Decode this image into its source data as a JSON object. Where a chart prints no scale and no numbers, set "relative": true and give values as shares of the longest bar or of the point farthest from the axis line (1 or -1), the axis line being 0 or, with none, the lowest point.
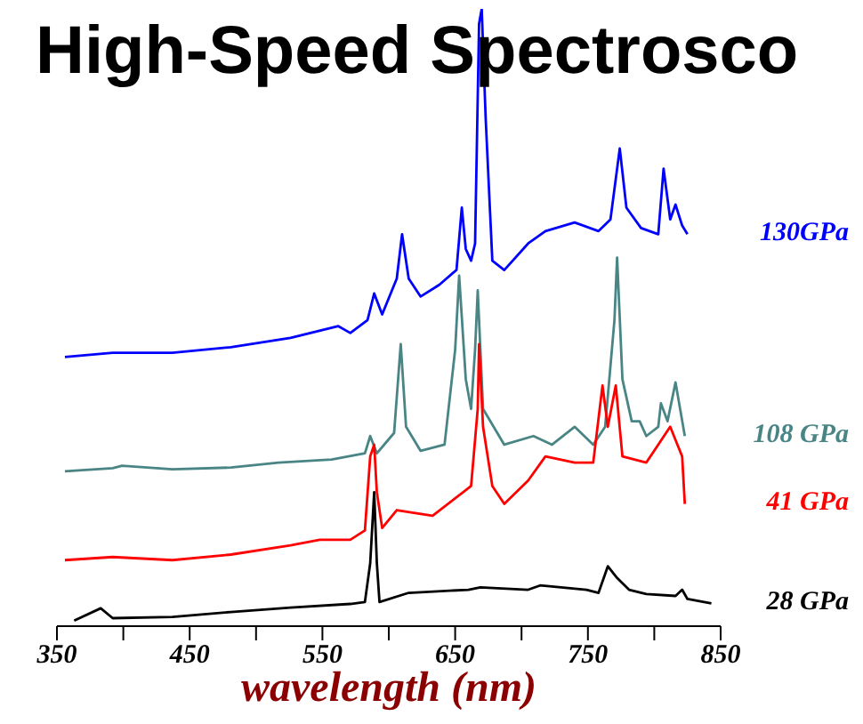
{
  "chart_data": {
    "type": "line",
    "title": "High-Speed Spectrosco",
    "xlabel": "wavelength (nm)",
    "relative": true,
    "xlim": [
      350,
      850
    ],
    "xticks": [
      350,
      {
        "value": 400,
        "label": null
      },
      450,
      {
        "value": 500,
        "label": null
      },
      550,
      {
        "value": 600,
        "label": null
      },
      650,
      {
        "value": 700,
        "label": null
      },
      750,
      {
        "value": 800,
        "label": null
      },
      850
    ],
    "series": [
      {
        "name": "130GPa",
        "color": "#0000ff",
        "x": [
          356,
          392,
          437,
          481,
          526,
          562,
          571,
          584,
          589,
          595,
          606,
          610,
          615,
          624,
          638,
          651,
          655,
          658,
          662,
          665,
          668,
          670,
          673,
          678,
          687,
          705,
          718,
          740,
          758,
          767,
          774,
          779,
          790,
          803,
          807,
          812,
          816,
          821,
          825
        ],
        "values": [
          0.436,
          0.443,
          0.443,
          0.452,
          0.467,
          0.486,
          0.475,
          0.496,
          0.539,
          0.505,
          0.563,
          0.635,
          0.563,
          0.534,
          0.553,
          0.577,
          0.678,
          0.611,
          0.592,
          0.62,
          0.976,
          1,
          0.822,
          0.592,
          0.577,
          0.62,
          0.64,
          0.654,
          0.64,
          0.659,
          0.774,
          0.678,
          0.645,
          0.635,
          0.741,
          0.659,
          0.683,
          0.649,
          0.635
        ]
      },
      {
        "name": "108 GPa",
        "color": "#4a8585",
        "x": [
          356,
          392,
          399,
          437,
          481,
          517,
          557,
          582,
          586,
          591,
          604,
          609,
          613,
          624,
          642,
          650,
          653,
          658,
          662,
          665,
          667,
          671,
          687,
          709,
          723,
          740,
          754,
          763,
          770,
          772,
          776,
          783,
          789,
          794,
          803,
          805,
          810,
          816,
          823
        ],
        "values": [
          0.251,
          0.256,
          0.26,
          0.254,
          0.257,
          0.265,
          0.27,
          0.28,
          0.308,
          0.28,
          0.313,
          0.457,
          0.323,
          0.284,
          0.294,
          0.448,
          0.568,
          0.4,
          0.352,
          0.448,
          0.544,
          0.352,
          0.294,
          0.308,
          0.294,
          0.323,
          0.294,
          0.323,
          0.496,
          0.597,
          0.4,
          0.332,
          0.332,
          0.308,
          0.323,
          0.361,
          0.332,
          0.395,
          0.308
        ]
      },
      {
        "name": "41 GPa",
        "color": "#ff0000",
        "x": [
          356,
          392,
          437,
          481,
          526,
          548,
          571,
          582,
          586,
          589,
          591,
          595,
          606,
          633,
          656,
          662,
          667,
          668,
          671,
          678,
          687,
          705,
          718,
          740,
          754,
          761,
          765,
          771,
          776,
          794,
          812,
          821,
          823
        ],
        "values": [
          0.107,
          0.112,
          0.107,
          0.116,
          0.131,
          0.14,
          0.14,
          0.155,
          0.275,
          0.294,
          0.217,
          0.159,
          0.188,
          0.179,
          0.217,
          0.227,
          0.352,
          0.457,
          0.323,
          0.227,
          0.198,
          0.236,
          0.275,
          0.265,
          0.265,
          0.39,
          0.323,
          0.39,
          0.275,
          0.265,
          0.323,
          0.275,
          0.198
        ]
      },
      {
        "name": "28 GPa",
        "color": "#000000",
        "x": [
          363,
          383,
          392,
          437,
          481,
          526,
          571,
          582,
          586,
          589,
          591,
          593,
          615,
          660,
          669,
          705,
          714,
          749,
          758,
          765,
          772,
          781,
          794,
          816,
          821,
          825,
          843
        ],
        "values": [
          0.009,
          0.029,
          0.013,
          0.015,
          0.023,
          0.03,
          0.036,
          0.039,
          0.102,
          0.217,
          0.102,
          0.039,
          0.054,
          0.059,
          0.063,
          0.059,
          0.066,
          0.059,
          0.054,
          0.097,
          0.078,
          0.059,
          0.052,
          0.049,
          0.059,
          0.044,
          0.037
        ]
      }
    ]
  }
}
